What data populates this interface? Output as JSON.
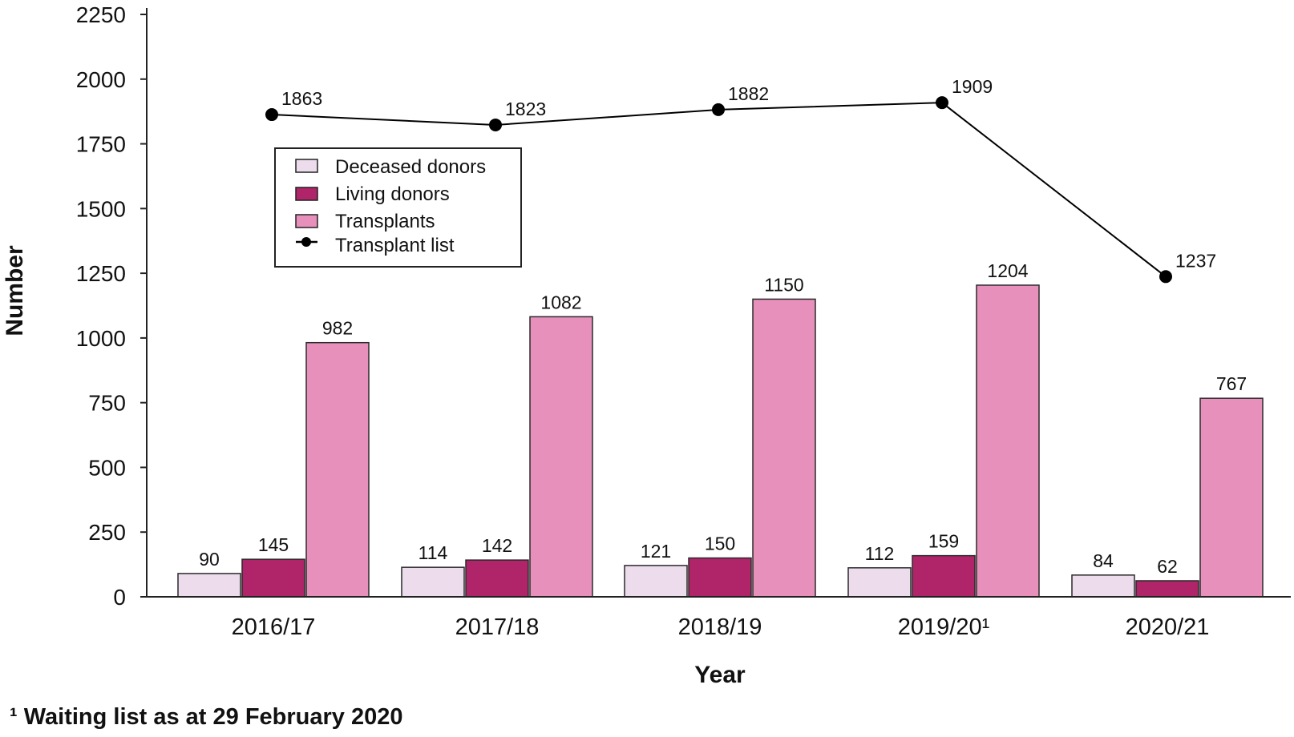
{
  "chart_data": {
    "type": "bar",
    "categories": [
      "2016/17",
      "2017/18",
      "2018/19",
      "2019/20¹",
      "2020/21"
    ],
    "series": [
      {
        "name": "Deceased donors",
        "kind": "bar",
        "color": "#ecdcec",
        "values": [
          90,
          114,
          121,
          112,
          84
        ]
      },
      {
        "name": "Living donors",
        "kind": "bar",
        "color": "#b0256a",
        "values": [
          145,
          142,
          150,
          159,
          62
        ]
      },
      {
        "name": "Transplants",
        "kind": "bar",
        "color": "#e890bc",
        "values": [
          982,
          1082,
          1150,
          1204,
          767
        ]
      },
      {
        "name": "Transplant list",
        "kind": "line",
        "color": "#000000",
        "values": [
          1863,
          1823,
          1882,
          1909,
          1237
        ]
      }
    ],
    "data_labels": {
      "Deceased donors": [
        "90",
        "114",
        "121",
        "112",
        "84"
      ],
      "Living donors": [
        "145",
        "142",
        "150",
        "159",
        "62"
      ],
      "Transplants": [
        "982",
        "1082",
        "1150",
        "1204",
        "767"
      ],
      "Transplant list": [
        "1863",
        "1823",
        "1882",
        "1909",
        "1237"
      ]
    },
    "xlabel": "Year",
    "ylabel": "Number",
    "ylim": [
      0,
      2250
    ],
    "yticks": [
      0,
      250,
      500,
      750,
      1000,
      1250,
      1500,
      1750,
      2000,
      2250
    ],
    "ytick_labels": [
      "0",
      "250",
      "500",
      "750",
      "1000",
      "1250",
      "1500",
      "1750",
      "2000",
      "2250"
    ],
    "grid": false,
    "legend_position": "upper-left"
  },
  "footnote": "¹ Waiting list as at 29 February 2020"
}
